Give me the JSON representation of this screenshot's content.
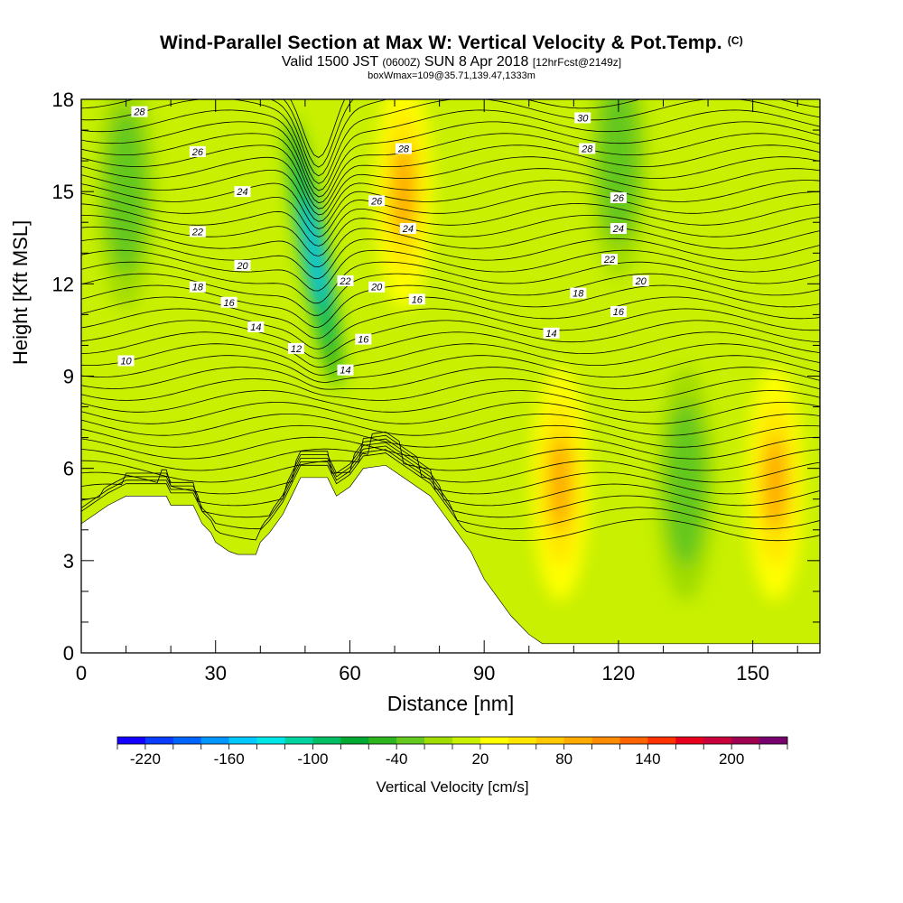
{
  "header": {
    "title": "Wind-Parallel Section at Max W: Vertical Velocity & Pot.Temp.",
    "copyright": "(C)",
    "valid_prefix": "Valid 1500 JST",
    "valid_utc": "(0600Z)",
    "valid_date": "SUN 8 Apr 2018",
    "forecast": "[12hrFcst@2149z]",
    "box_info": "boxWmax=109@35.71,139.47,1333m"
  },
  "colors": {
    "background": "#ffffff",
    "terrain": "#ffffff",
    "contour_line": "#000000",
    "colorbar": [
      "#1400ff",
      "#0a3cff",
      "#0064ff",
      "#0096ff",
      "#00c8ff",
      "#00e6e6",
      "#00d2a0",
      "#00be64",
      "#00aa32",
      "#2db41e",
      "#64c81e",
      "#a0dc00",
      "#c8f000",
      "#ffff00",
      "#ffe600",
      "#ffc800",
      "#ffaa00",
      "#ff8c00",
      "#ff6400",
      "#ff3200",
      "#e6001e",
      "#c8003c",
      "#a00050",
      "#78006e"
    ]
  },
  "chart_data": {
    "type": "heatmap",
    "title": "Wind-Parallel Section at Max W: Vertical Velocity & Pot.Temp.",
    "xlabel": "Distance [nm]",
    "ylabel": "Height [Kft MSL]",
    "xlim": [
      0,
      165
    ],
    "ylim": [
      0,
      18
    ],
    "x_ticks": [
      0,
      30,
      60,
      90,
      120,
      150
    ],
    "y_ticks": [
      0,
      3,
      6,
      9,
      12,
      15,
      18
    ],
    "colorbar": {
      "label": "Vertical Velocity [cm/s]",
      "min": -240,
      "max": 240,
      "step": 20,
      "tick_labels": [
        "-220",
        "-160",
        "-100",
        "-40",
        "20",
        "80",
        "140",
        "200"
      ]
    },
    "features": [
      {
        "name": "downdraft core",
        "x": 52,
        "y": 13,
        "w": -150
      },
      {
        "name": "updraft column",
        "x": 72,
        "y": 15,
        "w": 90
      },
      {
        "name": "updraft core",
        "x": 107,
        "y": 5.5,
        "w": 90
      },
      {
        "name": "downdraft",
        "x": 135,
        "y": 5.5,
        "w": -40
      },
      {
        "name": "updraft core",
        "x": 155,
        "y": 5.5,
        "w": 80
      },
      {
        "name": "upper downdraft band",
        "x": 120,
        "y": 16,
        "w": -40
      },
      {
        "name": "upper downdraft band",
        "x": 10,
        "y": 15,
        "w": -40
      }
    ],
    "terrain_height_kft": [
      [
        0,
        4.2
      ],
      [
        3,
        4.5
      ],
      [
        6,
        4.8
      ],
      [
        10,
        5.1
      ],
      [
        19,
        5.1
      ],
      [
        20,
        4.8
      ],
      [
        25,
        4.8
      ],
      [
        27,
        4.2
      ],
      [
        29,
        3.9
      ],
      [
        30,
        3.6
      ],
      [
        33,
        3.3
      ],
      [
        35,
        3.2
      ],
      [
        39,
        3.2
      ],
      [
        40,
        3.6
      ],
      [
        42,
        3.9
      ],
      [
        45,
        4.5
      ],
      [
        47,
        5.1
      ],
      [
        49,
        5.7
      ],
      [
        55,
        5.7
      ],
      [
        57,
        5.1
      ],
      [
        60,
        5.4
      ],
      [
        63,
        6.0
      ],
      [
        68,
        6.1
      ],
      [
        72,
        5.7
      ],
      [
        75,
        5.4
      ],
      [
        78,
        5.1
      ],
      [
        81,
        4.5
      ],
      [
        84,
        3.9
      ],
      [
        87,
        3.3
      ],
      [
        90,
        2.4
      ],
      [
        93,
        1.8
      ],
      [
        96,
        1.2
      ],
      [
        100,
        0.6
      ],
      [
        103,
        0.3
      ],
      [
        165,
        0.3
      ]
    ],
    "theta_labels": [
      {
        "x": 10,
        "y": 9.5,
        "label": "10"
      },
      {
        "x": 48,
        "y": 9.9,
        "label": "12"
      },
      {
        "x": 39,
        "y": 10.6,
        "label": "14"
      },
      {
        "x": 59,
        "y": 9.2,
        "label": "14"
      },
      {
        "x": 105,
        "y": 10.4,
        "label": "14"
      },
      {
        "x": 33,
        "y": 11.4,
        "label": "16"
      },
      {
        "x": 63,
        "y": 10.2,
        "label": "16"
      },
      {
        "x": 75,
        "y": 11.5,
        "label": "16"
      },
      {
        "x": 120,
        "y": 11.1,
        "label": "16"
      },
      {
        "x": 26,
        "y": 11.9,
        "label": "18"
      },
      {
        "x": 111,
        "y": 11.7,
        "label": "18"
      },
      {
        "x": 36,
        "y": 12.6,
        "label": "20"
      },
      {
        "x": 66,
        "y": 11.9,
        "label": "20"
      },
      {
        "x": 125,
        "y": 12.1,
        "label": "20"
      },
      {
        "x": 59,
        "y": 12.1,
        "label": "22"
      },
      {
        "x": 26,
        "y": 13.7,
        "label": "22"
      },
      {
        "x": 118,
        "y": 12.8,
        "label": "22"
      },
      {
        "x": 36,
        "y": 15.0,
        "label": "24"
      },
      {
        "x": 73,
        "y": 13.8,
        "label": "24"
      },
      {
        "x": 120,
        "y": 13.8,
        "label": "24"
      },
      {
        "x": 26,
        "y": 16.3,
        "label": "26"
      },
      {
        "x": 66,
        "y": 14.7,
        "label": "26"
      },
      {
        "x": 120,
        "y": 14.8,
        "label": "26"
      },
      {
        "x": 13,
        "y": 17.6,
        "label": "28"
      },
      {
        "x": 72,
        "y": 16.4,
        "label": "28"
      },
      {
        "x": 113,
        "y": 16.4,
        "label": "28"
      },
      {
        "x": 112,
        "y": 17.4,
        "label": "30"
      }
    ]
  }
}
